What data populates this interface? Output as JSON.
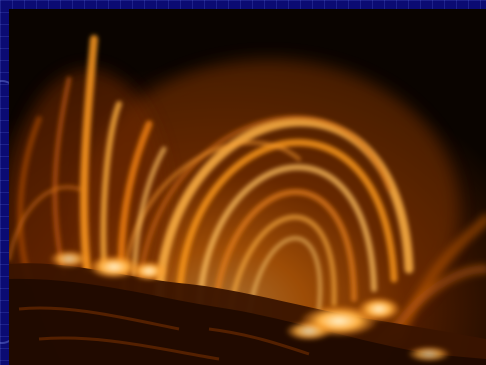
{
  "slide": {
    "background_color": "#0b0b72",
    "image": {
      "subject": "solar-coronal-loops",
      "palette": [
        "#0a0400",
        "#4a1800",
        "#b85a00",
        "#ff9a1a",
        "#ffd080",
        "#fff0c8"
      ]
    }
  }
}
